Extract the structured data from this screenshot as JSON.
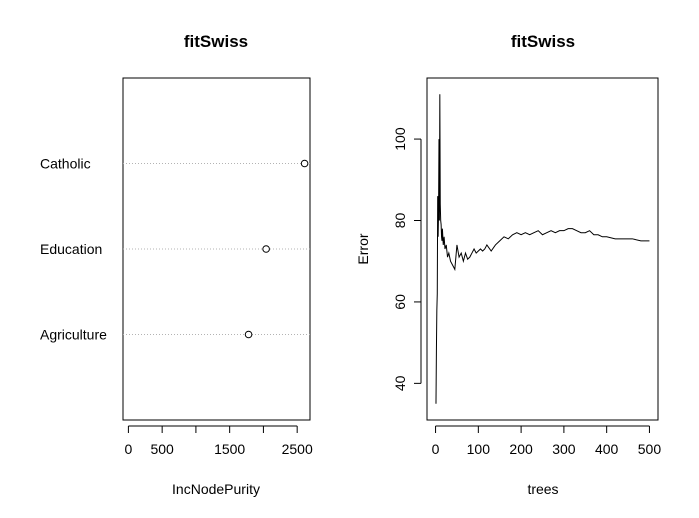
{
  "chart_data": [
    {
      "type": "dotchart",
      "title": "fitSwiss",
      "xlabel": "IncNodePurity",
      "categories": [
        "Agriculture",
        "Education",
        "Catholic"
      ],
      "values": [
        1780,
        2040,
        2610
      ],
      "xticks": [
        0,
        500,
        1000,
        1500,
        2000,
        2500
      ],
      "xtick_labels": [
        "0",
        "500",
        "",
        "1500",
        "",
        "2500"
      ],
      "xlim": [
        -80,
        2690
      ]
    },
    {
      "type": "line",
      "title": "fitSwiss",
      "xlabel": "trees",
      "ylabel": "Error",
      "xticks": [
        0,
        100,
        200,
        300,
        400,
        500
      ],
      "yticks": [
        40,
        60,
        80,
        100
      ],
      "xlim": [
        -20,
        520
      ],
      "ylim": [
        31,
        115
      ],
      "series": [
        {
          "x": [
            1,
            2,
            3,
            4,
            5,
            6,
            7,
            8,
            9,
            10,
            11,
            12,
            13,
            14,
            15,
            16,
            18,
            20,
            22,
            25,
            28,
            31,
            35,
            40,
            45,
            50,
            55,
            60,
            65,
            70,
            75,
            80,
            85,
            90,
            95,
            100,
            105,
            110,
            115,
            120,
            130,
            140,
            150,
            160,
            170,
            180,
            190,
            200,
            210,
            220,
            230,
            240,
            250,
            260,
            270,
            280,
            290,
            300,
            310,
            320,
            330,
            340,
            350,
            360,
            370,
            380,
            390,
            400,
            420,
            440,
            460,
            480,
            500
          ],
          "y": [
            35,
            48,
            58,
            62,
            86,
            76,
            82,
            100,
            80,
            111,
            84,
            80,
            79,
            76,
            75,
            78,
            74,
            76,
            73,
            74,
            71,
            72,
            70,
            69,
            68,
            74,
            71,
            72,
            70,
            72,
            70.5,
            71,
            72,
            73,
            72,
            72.5,
            73,
            72.5,
            73,
            74,
            72.5,
            74,
            75,
            76,
            75.5,
            76.5,
            77,
            76.5,
            77,
            76.5,
            77,
            77.5,
            76.5,
            77,
            77.5,
            77,
            77.5,
            77.5,
            78,
            78,
            77.5,
            77,
            77,
            77.5,
            76.5,
            76.5,
            76,
            76,
            75.5,
            75.5,
            75.5,
            75,
            75
          ]
        }
      ]
    }
  ]
}
